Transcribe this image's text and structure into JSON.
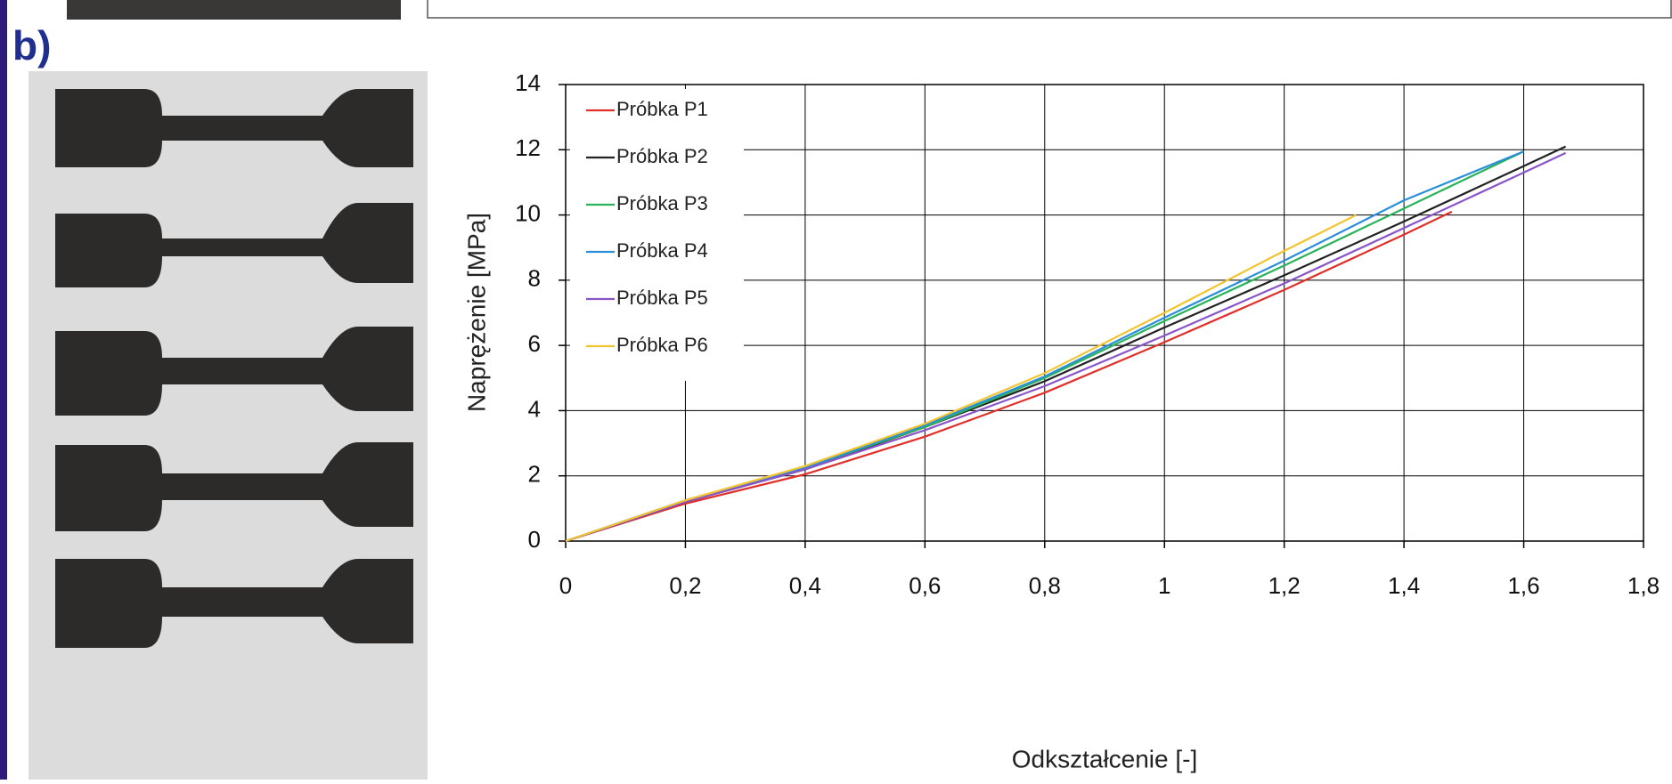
{
  "panel_label": "b)",
  "chart_data": {
    "type": "line",
    "x_label": "Odkształcenie [-]",
    "y_label": "Naprężenie  [MPa]",
    "xlim": [
      0,
      1.8
    ],
    "ylim": [
      0,
      14
    ],
    "xticks": [
      0,
      {
        "value": 0.2,
        "label": "0,2"
      },
      {
        "value": 0.4,
        "label": "0,4"
      },
      {
        "value": 0.6,
        "label": "0,6"
      },
      {
        "value": 0.8,
        "label": "0,8"
      },
      1,
      {
        "value": 1.2,
        "label": "1,2"
      },
      {
        "value": 1.4,
        "label": "1,4"
      },
      {
        "value": 1.6,
        "label": "1,6"
      },
      {
        "value": 1.8,
        "label": "1,8"
      }
    ],
    "yticks": [
      0,
      2,
      4,
      6,
      8,
      10,
      12,
      14
    ],
    "grid": true,
    "legend": "upper left",
    "series": [
      {
        "name": "Próbka P1",
        "color": "#e0302a",
        "x": [
          0,
          0.2,
          0.4,
          0.6,
          0.8,
          1.0,
          1.2,
          1.4,
          1.48
        ],
        "values": [
          0,
          1.15,
          2.05,
          3.2,
          4.55,
          6.1,
          7.7,
          9.4,
          10.1
        ]
      },
      {
        "name": "Próbka P2",
        "color": "#222222",
        "x": [
          0,
          0.2,
          0.4,
          0.6,
          0.8,
          1.0,
          1.2,
          1.4,
          1.6,
          1.67
        ],
        "values": [
          0,
          1.2,
          2.2,
          3.5,
          4.9,
          6.55,
          8.15,
          9.8,
          11.5,
          12.1
        ]
      },
      {
        "name": "Próbka P3",
        "color": "#2ab35a",
        "x": [
          0,
          0.2,
          0.4,
          0.6,
          0.8,
          1.0,
          1.2,
          1.4,
          1.6
        ],
        "values": [
          0,
          1.25,
          2.25,
          3.5,
          5.0,
          6.75,
          8.45,
          10.2,
          11.95
        ]
      },
      {
        "name": "Próbka P4",
        "color": "#2a8fd8",
        "x": [
          0,
          0.2,
          0.4,
          0.6,
          0.8,
          1.0,
          1.2,
          1.4,
          1.6
        ],
        "values": [
          0,
          1.25,
          2.25,
          3.55,
          5.05,
          6.85,
          8.6,
          10.45,
          11.95
        ]
      },
      {
        "name": "Próbka P5",
        "color": "#8a55c8",
        "x": [
          0,
          0.2,
          0.4,
          0.6,
          0.8,
          1.0,
          1.2,
          1.4,
          1.6,
          1.67
        ],
        "values": [
          0,
          1.2,
          2.2,
          3.4,
          4.75,
          6.3,
          7.9,
          9.6,
          11.3,
          11.9
        ]
      },
      {
        "name": "Próbka P6",
        "color": "#f2c530",
        "x": [
          0,
          0.2,
          0.4,
          0.6,
          0.8,
          1.0,
          1.2,
          1.32
        ],
        "values": [
          0,
          1.25,
          2.3,
          3.6,
          5.15,
          7.0,
          8.9,
          10.0
        ]
      }
    ]
  }
}
